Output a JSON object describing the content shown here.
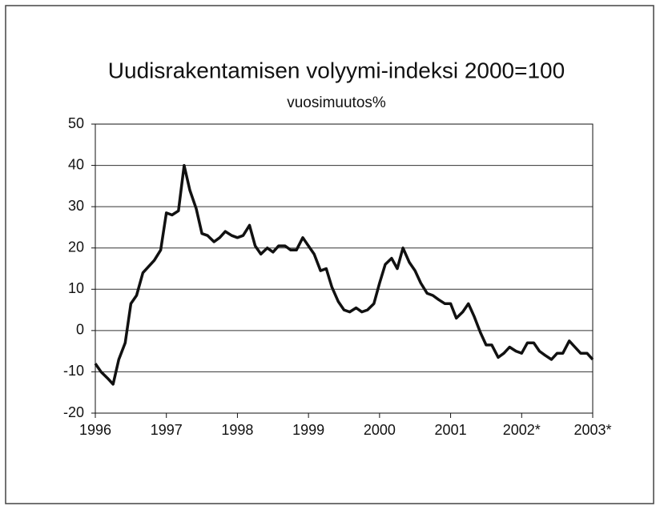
{
  "chart_data": {
    "type": "line",
    "title": "Uudisrakentamisen volyymi-indeksi 2000=100",
    "subtitle": "vuosimuutos%",
    "color": "#111111",
    "grid": true,
    "xlim": [
      1996,
      2003
    ],
    "xticks": [
      1996,
      1997,
      1998,
      1999,
      2000,
      2001,
      {
        "value": 2002,
        "label": "2002*"
      },
      {
        "value": 2003,
        "label": "2003*"
      }
    ],
    "ylim": [
      -20,
      50
    ],
    "yticks": [
      -20,
      -10,
      0,
      10,
      20,
      30,
      40,
      50
    ],
    "x": [
      1996,
      1996.08,
      1996.17,
      1996.25,
      1996.33,
      1996.42,
      1996.5,
      1996.58,
      1996.67,
      1996.75,
      1996.83,
      1996.92,
      1997,
      1997.08,
      1997.17,
      1997.25,
      1997.33,
      1997.42,
      1997.5,
      1997.58,
      1997.67,
      1997.75,
      1997.83,
      1997.92,
      1998,
      1998.08,
      1998.17,
      1998.25,
      1998.33,
      1998.42,
      1998.5,
      1998.58,
      1998.67,
      1998.75,
      1998.83,
      1998.92,
      1999,
      1999.08,
      1999.17,
      1999.25,
      1999.33,
      1999.42,
      1999.5,
      1999.58,
      1999.67,
      1999.75,
      1999.83,
      1999.92,
      2000,
      2000.08,
      2000.17,
      2000.25,
      2000.33,
      2000.42,
      2000.5,
      2000.58,
      2000.67,
      2000.75,
      2000.83,
      2000.92,
      2001,
      2001.08,
      2001.17,
      2001.25,
      2001.33,
      2001.42,
      2001.5,
      2001.58,
      2001.67,
      2001.75,
      2001.83,
      2001.92,
      2002,
      2002.08,
      2002.17,
      2002.25,
      2002.33,
      2002.42,
      2002.5,
      2002.58,
      2002.67,
      2002.75,
      2002.83,
      2002.92,
      2003
    ],
    "values": [
      -8,
      -10,
      -11.5,
      -13,
      -7,
      -3,
      6.5,
      8.5,
      14,
      15.5,
      17,
      19.5,
      28.5,
      28,
      29,
      40,
      34,
      29.5,
      23.5,
      23,
      21.5,
      22.5,
      24,
      23,
      22.5,
      23,
      25.5,
      20.5,
      18.5,
      20,
      19,
      20.5,
      20.5,
      19.5,
      19.5,
      22.5,
      20.5,
      18.5,
      14.5,
      15,
      10.5,
      7,
      5,
      4.5,
      5.5,
      4.5,
      5,
      6.5,
      11.5,
      16,
      17.5,
      15,
      20,
      16.5,
      14.5,
      11.5,
      9,
      8.5,
      7.5,
      6.5,
      6.5,
      3,
      4.5,
      6.5,
      3.5,
      -0.5,
      -3.5,
      -3.5,
      -6.5,
      -5.5,
      -4,
      -5,
      -5.5,
      -3,
      -3,
      -5,
      -6,
      -7,
      -5.5,
      -5.5,
      -2.5,
      -4,
      -5.5,
      -5.5,
      -7
    ]
  }
}
